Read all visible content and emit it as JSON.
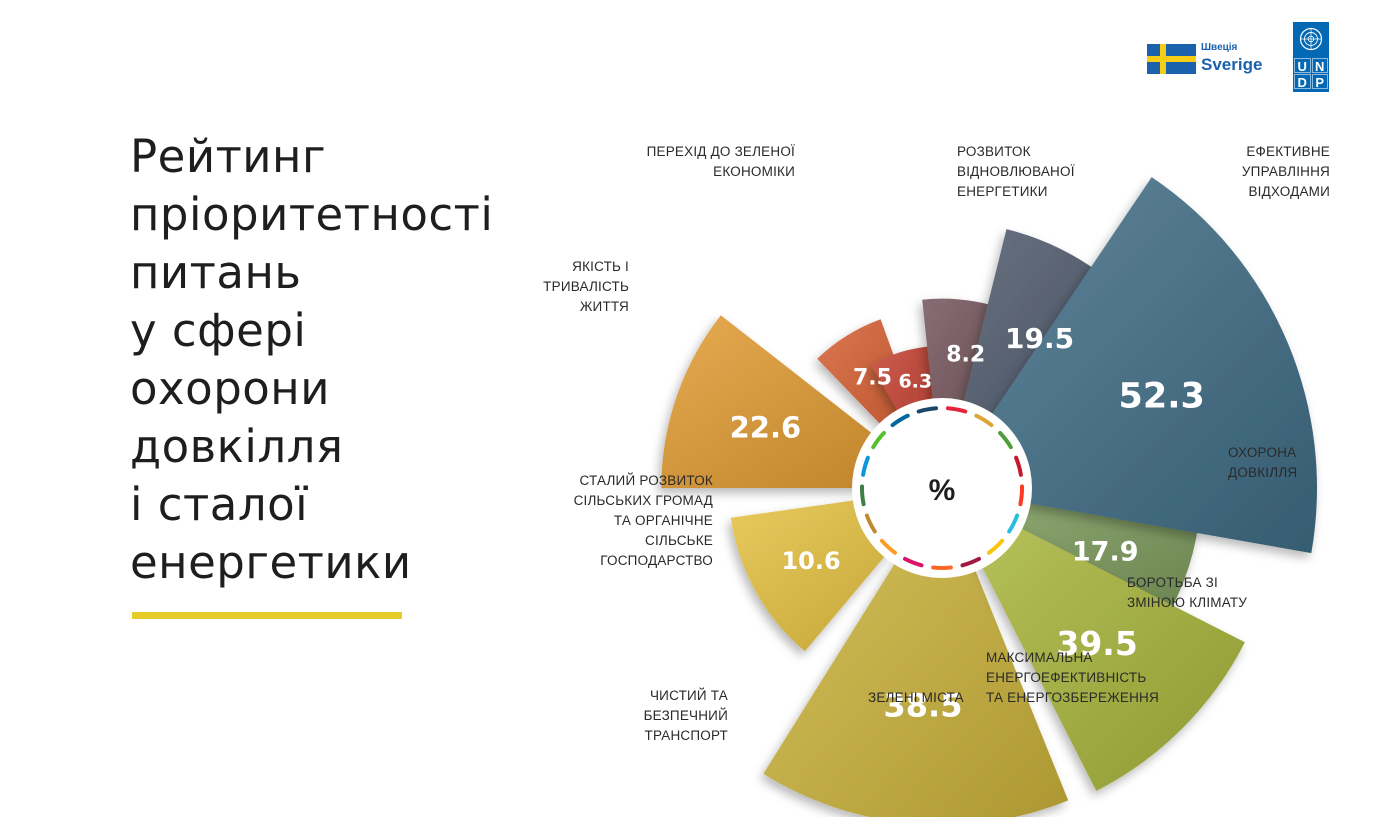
{
  "title_lines": [
    "Рейтинг",
    "пріоритетності",
    "питань",
    "у сфері",
    "охорони",
    "довкілля",
    "і сталої",
    "енергетики"
  ],
  "logos": {
    "sweden_small": "Швеція",
    "sweden_big": "Sverige",
    "undp_letters": [
      "U",
      "N",
      "D",
      "P"
    ]
  },
  "chart_data": {
    "type": "polar-bar",
    "center_label": "%",
    "categories": [
      {
        "label": [
          "ЕФЕКТИВНЕ",
          "УПРАВЛІННЯ",
          "ВІДХОДАМИ"
        ],
        "value": 52.3,
        "color": "#3f6d86"
      },
      {
        "label": [
          "ОХОРОНА",
          "ДОВКІЛЛЯ"
        ],
        "value": 19.5,
        "color": "#4a5668"
      },
      {
        "label": [
          "БОРОТЬБА ЗІ",
          "ЗМІНОЮ КЛІМАТУ"
        ],
        "value": 8.2,
        "color": "#6e4e56"
      },
      {
        "label": [
          "МАКСИМАЛЬНА",
          "ЕНЕРГОЕФЕКТИВНІСТЬ",
          "ТА ЕНЕРГОЗБЕРЕЖЕННЯ"
        ],
        "value": 6.3,
        "color": "#c13a2a"
      },
      {
        "label": [
          "ЗЕЛЕНІ МІСТА"
        ],
        "value": 7.5,
        "color": "#d2582a"
      },
      {
        "label": [
          "ЧИСТИЙ ТА",
          "БЕЗПЕЧНИЙ",
          "ТРАНСПОРТ"
        ],
        "value": 22.6,
        "color": "#e0982c"
      },
      {
        "label": [
          "СТАЛИЙ РОЗВИТОК",
          "СІЛЬСЬКИХ ГРОМАД",
          "ТА ОРГАНІЧНЕ",
          "СІЛЬСЬКЕ",
          "ГОСПОДАРСТВО"
        ],
        "value": 10.6,
        "color": "#e5c03c"
      },
      {
        "label": [
          "ЯКІСТЬ І",
          "ТРИВАЛІСТЬ",
          "ЖИТТЯ"
        ],
        "value": 38.5,
        "color": "#cdb43a"
      },
      {
        "label": [
          "ПЕРЕХІД ДО ЗЕЛЕНОЇ",
          "ЕКОНОМІКИ"
        ],
        "value": 39.5,
        "color": "#aab83a"
      },
      {
        "label": [
          "РОЗВИТОК",
          "ВІДНОВЛЮВАНОЇ",
          "ЕНЕРГЕТИКИ"
        ],
        "value": 17.9,
        "color": "#7b9a5a"
      }
    ],
    "sdg_ring_colors": [
      "#e5243b",
      "#dda63a",
      "#4c9f38",
      "#c5192d",
      "#ff3a21",
      "#26bde2",
      "#fcc30b",
      "#a21942",
      "#fd6925",
      "#dd1367",
      "#fd9d24",
      "#bf8b2e",
      "#3f7e44",
      "#0a97d9",
      "#56c02b",
      "#00689d",
      "#19486a"
    ]
  }
}
